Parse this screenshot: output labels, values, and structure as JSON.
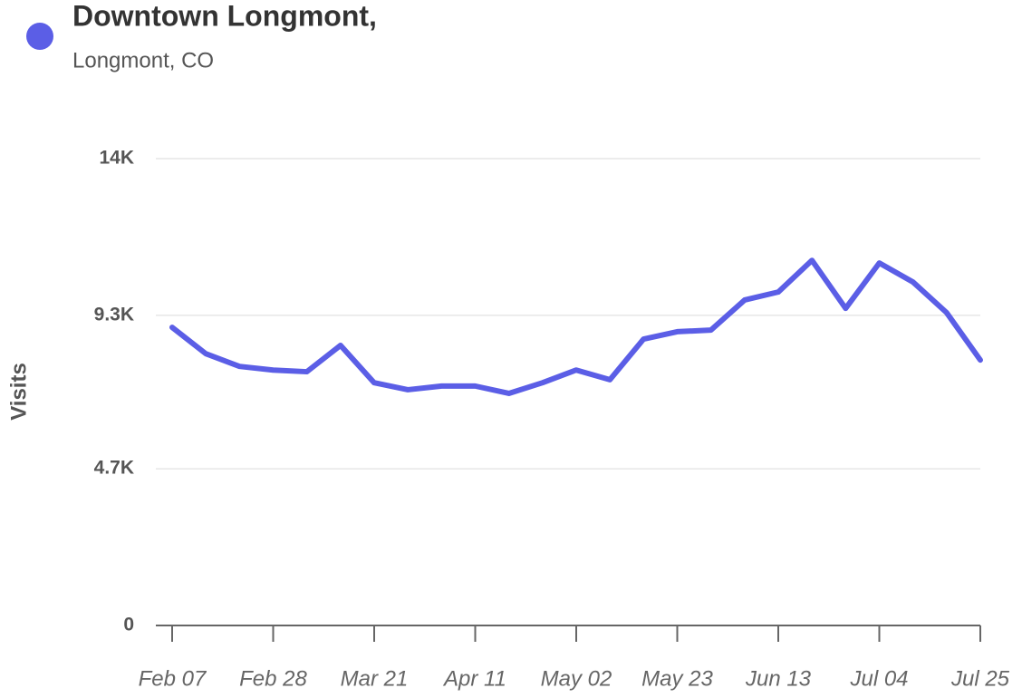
{
  "chart_data": {
    "type": "line",
    "subtitle": "Longmont, CO",
    "y_label": "Visits",
    "categories": [
      "Feb 07",
      null,
      null,
      "Feb 28",
      null,
      null,
      "Mar 21",
      null,
      null,
      "Apr 11",
      null,
      null,
      "May 02",
      null,
      null,
      "May 23",
      null,
      null,
      "Jun 13",
      null,
      null,
      "Jul 04",
      null,
      null,
      "Jul 25"
    ],
    "series": [
      {
        "name": "Downtown Longmont,",
        "color": "#5b5ee6",
        "values": [
          8940,
          8150,
          7770,
          7660,
          7610,
          8400,
          7280,
          7070,
          7180,
          7180,
          6960,
          7280,
          7660,
          7370,
          8590,
          8810,
          8860,
          9760,
          10000,
          10950,
          9510,
          10870,
          10300,
          9380,
          7960
        ]
      }
    ],
    "ylim": [
      0,
      14000
    ],
    "yticks": [
      0,
      {
        "value": 4700,
        "label": "4.7K"
      },
      {
        "value": 9300,
        "label": "9.3K"
      },
      {
        "value": 14000,
        "label": "14K"
      }
    ],
    "grid": true
  }
}
